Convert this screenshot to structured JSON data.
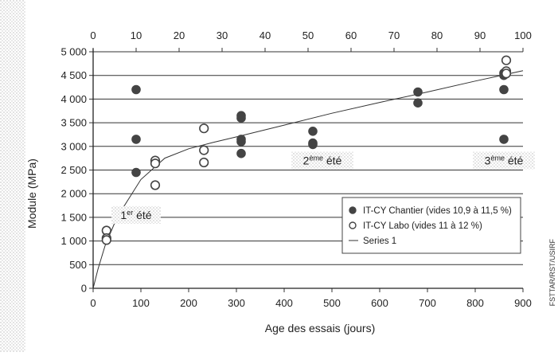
{
  "chart_data": {
    "type": "scatter",
    "xlabel": "Age des essais (jours)",
    "ylabel": "Module (MPa)",
    "xlim": [
      0,
      900
    ],
    "ylim": [
      0,
      5000
    ],
    "x_ticks": [
      0,
      100,
      200,
      300,
      400,
      500,
      600,
      700,
      800,
      900
    ],
    "y_ticks": [
      0,
      500,
      1000,
      1500,
      2000,
      2500,
      3000,
      3500,
      4000,
      4500,
      5000
    ],
    "y_tick_labels": [
      "0",
      "500",
      "1 000",
      "1 500",
      "2 000",
      "2 500",
      "3 000",
      "3 500",
      "4 000",
      "4 500",
      "5 000"
    ],
    "x2_ticks": [
      0,
      10,
      20,
      30,
      40,
      50,
      60,
      70,
      80,
      90,
      100
    ],
    "x2lim": [
      0,
      100
    ],
    "grid": true,
    "legend_position": "bottom-right",
    "annotations": [
      {
        "base": "1",
        "sup": "er",
        "rest": " été",
        "x": 90,
        "y": 1550
      },
      {
        "base": "2",
        "sup": "ème",
        "rest": " été",
        "x": 480,
        "y": 2700
      },
      {
        "base": "3",
        "sup": "ème",
        "rest": " été",
        "x": 860,
        "y": 2700
      }
    ],
    "series": [
      {
        "name": "IT-CY Chantier (vides 10,9 à 11,5 %)",
        "marker": "filled-circle",
        "color": "#444444",
        "points": [
          [
            90,
            4200
          ],
          [
            90,
            3150
          ],
          [
            90,
            2450
          ],
          [
            310,
            3650
          ],
          [
            310,
            3600
          ],
          [
            310,
            3150
          ],
          [
            310,
            3100
          ],
          [
            310,
            2850
          ],
          [
            460,
            3320
          ],
          [
            460,
            3070
          ],
          [
            460,
            3040
          ],
          [
            680,
            4150
          ],
          [
            680,
            3920
          ],
          [
            860,
            4550
          ],
          [
            860,
            4500
          ],
          [
            860,
            4200
          ],
          [
            860,
            3150
          ]
        ]
      },
      {
        "name": "IT-CY Labo (vides 11 à 12 %)",
        "marker": "open-circle",
        "color": "#444444",
        "points": [
          [
            28,
            1220
          ],
          [
            28,
            1060
          ],
          [
            28,
            1020
          ],
          [
            130,
            2700
          ],
          [
            130,
            2640
          ],
          [
            130,
            2180
          ],
          [
            232,
            3380
          ],
          [
            232,
            2920
          ],
          [
            232,
            2660
          ],
          [
            865,
            4820
          ],
          [
            865,
            4590
          ],
          [
            865,
            4540
          ]
        ]
      },
      {
        "name": "Series 1",
        "marker": "line",
        "color": "#333333",
        "points": [
          [
            0,
            0
          ],
          [
            10,
            400
          ],
          [
            25,
            900
          ],
          [
            50,
            1500
          ],
          [
            100,
            2300
          ],
          [
            150,
            2750
          ],
          [
            200,
            2950
          ],
          [
            250,
            3080
          ],
          [
            300,
            3200
          ],
          [
            400,
            3450
          ],
          [
            500,
            3700
          ],
          [
            600,
            3930
          ],
          [
            700,
            4150
          ],
          [
            800,
            4380
          ],
          [
            900,
            4600
          ]
        ]
      }
    ]
  },
  "credit": "FSTTAR/RST/USIRF"
}
